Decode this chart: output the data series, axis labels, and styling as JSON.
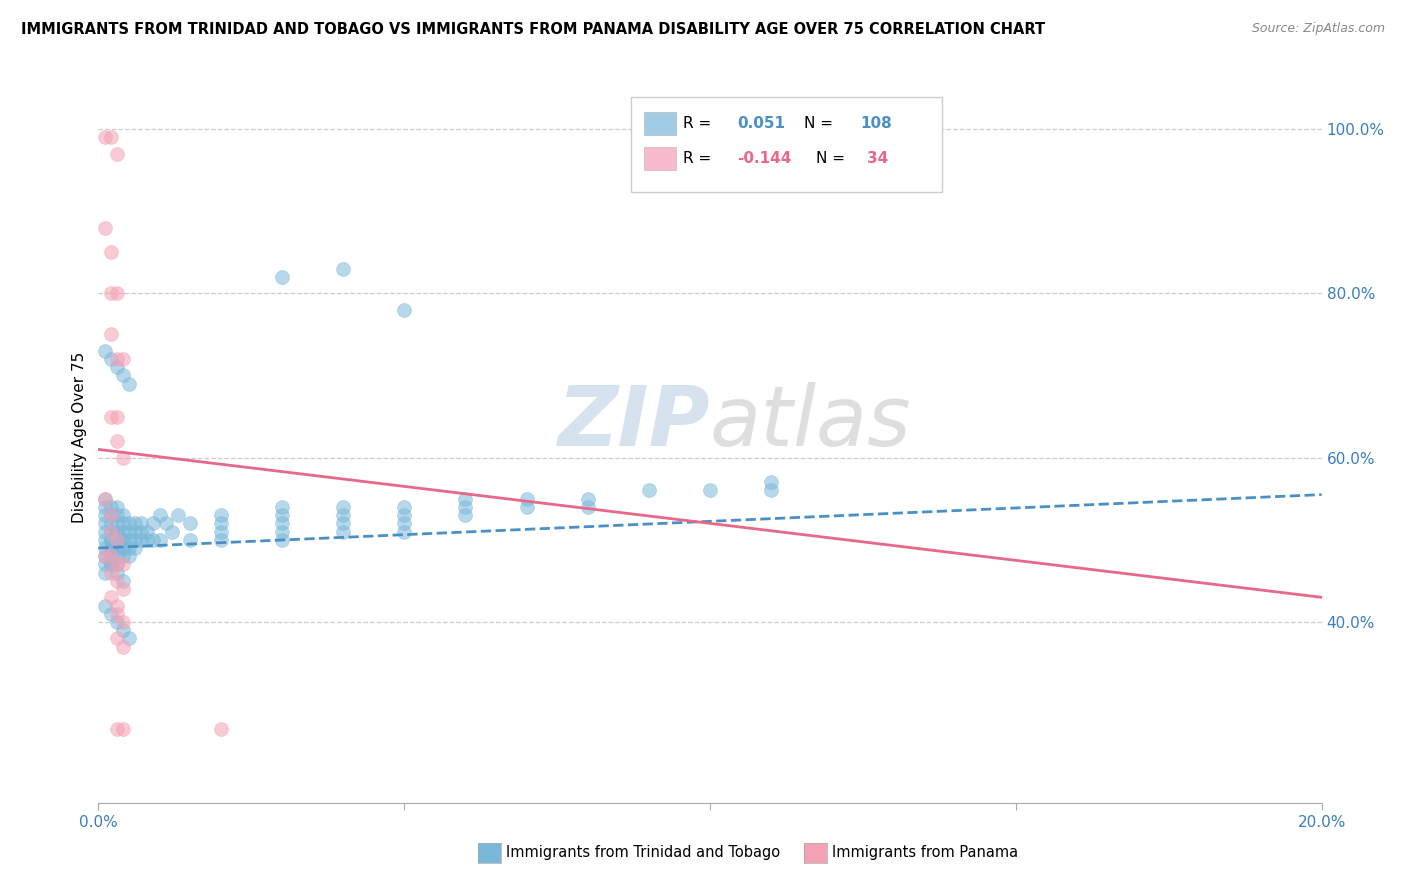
{
  "title": "IMMIGRANTS FROM TRINIDAD AND TOBAGO VS IMMIGRANTS FROM PANAMA DISABILITY AGE OVER 75 CORRELATION CHART",
  "source": "Source: ZipAtlas.com",
  "ylabel": "Disability Age Over 75",
  "tt_color": "#7ab8d9",
  "pan_color": "#f4a0b5",
  "tt_line_color": "#4a90c4",
  "pan_line_color": "#e8688a",
  "xlim": [
    0.0,
    0.2
  ],
  "ylim": [
    0.18,
    1.07
  ],
  "yticks": [
    0.4,
    0.6,
    0.8,
    1.0
  ],
  "ytick_labels": [
    "40.0%",
    "60.0%",
    "80.0%",
    "100.0%"
  ],
  "tt_line": [
    [
      0.0,
      0.49
    ],
    [
      0.2,
      0.555
    ]
  ],
  "pan_line": [
    [
      0.0,
      0.61
    ],
    [
      0.2,
      0.43
    ]
  ],
  "tt_scatter_x": [
    0.001,
    0.001,
    0.001,
    0.001,
    0.001,
    0.001,
    0.001,
    0.001,
    0.001,
    0.001,
    0.002,
    0.002,
    0.002,
    0.002,
    0.002,
    0.002,
    0.002,
    0.002,
    0.002,
    0.002,
    0.003,
    0.003,
    0.003,
    0.003,
    0.003,
    0.003,
    0.003,
    0.003,
    0.003,
    0.003,
    0.004,
    0.004,
    0.004,
    0.004,
    0.004,
    0.004,
    0.004,
    0.004,
    0.005,
    0.005,
    0.005,
    0.005,
    0.005,
    0.006,
    0.006,
    0.006,
    0.006,
    0.007,
    0.007,
    0.007,
    0.008,
    0.008,
    0.009,
    0.009,
    0.01,
    0.01,
    0.011,
    0.012,
    0.013,
    0.015,
    0.015,
    0.02,
    0.02,
    0.02,
    0.02,
    0.03,
    0.03,
    0.03,
    0.03,
    0.03,
    0.04,
    0.04,
    0.04,
    0.04,
    0.05,
    0.05,
    0.05,
    0.05,
    0.06,
    0.06,
    0.06,
    0.07,
    0.07,
    0.08,
    0.08,
    0.09,
    0.1,
    0.11,
    0.11,
    0.03,
    0.04,
    0.05,
    0.001,
    0.002,
    0.003,
    0.004,
    0.005,
    0.001,
    0.002,
    0.003,
    0.004,
    0.005,
    0.002,
    0.003,
    0.004
  ],
  "tt_scatter_y": [
    0.5,
    0.51,
    0.49,
    0.52,
    0.48,
    0.53,
    0.47,
    0.54,
    0.46,
    0.55,
    0.5,
    0.51,
    0.49,
    0.52,
    0.48,
    0.53,
    0.47,
    0.54,
    0.5,
    0.49,
    0.5,
    0.51,
    0.49,
    0.52,
    0.48,
    0.53,
    0.47,
    0.54,
    0.5,
    0.51,
    0.5,
    0.51,
    0.49,
    0.52,
    0.48,
    0.53,
    0.5,
    0.49,
    0.5,
    0.51,
    0.49,
    0.52,
    0.48,
    0.5,
    0.51,
    0.52,
    0.49,
    0.5,
    0.51,
    0.52,
    0.5,
    0.51,
    0.5,
    0.52,
    0.5,
    0.53,
    0.52,
    0.51,
    0.53,
    0.52,
    0.5,
    0.52,
    0.53,
    0.51,
    0.5,
    0.53,
    0.54,
    0.52,
    0.51,
    0.5,
    0.54,
    0.53,
    0.52,
    0.51,
    0.54,
    0.53,
    0.52,
    0.51,
    0.55,
    0.54,
    0.53,
    0.55,
    0.54,
    0.55,
    0.54,
    0.56,
    0.56,
    0.57,
    0.56,
    0.82,
    0.83,
    0.78,
    0.73,
    0.72,
    0.71,
    0.7,
    0.69,
    0.42,
    0.41,
    0.4,
    0.39,
    0.38,
    0.47,
    0.46,
    0.45
  ],
  "pan_scatter_x": [
    0.001,
    0.002,
    0.003,
    0.001,
    0.002,
    0.002,
    0.003,
    0.002,
    0.003,
    0.004,
    0.002,
    0.003,
    0.003,
    0.004,
    0.001,
    0.002,
    0.002,
    0.003,
    0.001,
    0.002,
    0.003,
    0.004,
    0.002,
    0.003,
    0.004,
    0.002,
    0.003,
    0.003,
    0.004,
    0.003,
    0.004,
    0.02,
    0.004,
    0.003
  ],
  "pan_scatter_y": [
    0.99,
    0.99,
    0.97,
    0.88,
    0.85,
    0.8,
    0.8,
    0.75,
    0.72,
    0.72,
    0.65,
    0.65,
    0.62,
    0.6,
    0.55,
    0.53,
    0.51,
    0.5,
    0.48,
    0.48,
    0.47,
    0.47,
    0.46,
    0.45,
    0.44,
    0.43,
    0.42,
    0.41,
    0.4,
    0.38,
    0.37,
    0.27,
    0.27,
    0.27
  ]
}
